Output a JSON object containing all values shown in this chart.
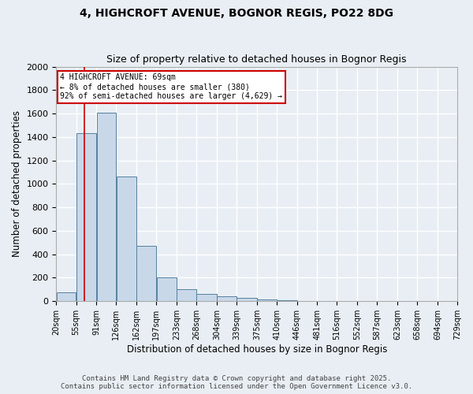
{
  "title_line1": "4, HIGHCROFT AVENUE, BOGNOR REGIS, PO22 8DG",
  "title_line2": "Size of property relative to detached houses in Bognor Regis",
  "xlabel": "Distribution of detached houses by size in Bognor Regis",
  "ylabel": "Number of detached properties",
  "bar_color": "#c8d8e8",
  "bar_edge_color": "#5580a0",
  "background_color": "#e8eef4",
  "grid_color": "#ffffff",
  "bin_edges": [
    20,
    55,
    91,
    126,
    162,
    197,
    233,
    268,
    304,
    339,
    375,
    410,
    446,
    481,
    516,
    552,
    587,
    623,
    658,
    694,
    729
  ],
  "bin_labels": [
    "20sqm",
    "55sqm",
    "91sqm",
    "126sqm",
    "162sqm",
    "197sqm",
    "233sqm",
    "268sqm",
    "304sqm",
    "339sqm",
    "375sqm",
    "410sqm",
    "446sqm",
    "481sqm",
    "516sqm",
    "552sqm",
    "587sqm",
    "623sqm",
    "658sqm",
    "694sqm",
    "729sqm"
  ],
  "bar_heights": [
    75,
    1430,
    1610,
    1060,
    470,
    200,
    100,
    60,
    40,
    30,
    15,
    8,
    4,
    2,
    1,
    1,
    0,
    0,
    0,
    0
  ],
  "property_value": 69,
  "property_label": "4 HIGHCROFT AVENUE: 69sqm",
  "annotation_line2": "← 8% of detached houses are smaller (380)",
  "annotation_line3": "92% of semi-detached houses are larger (4,629) →",
  "vline_color": "#cc0000",
  "annotation_box_color": "#ffffff",
  "annotation_box_edge": "#cc0000",
  "ylim": [
    0,
    2000
  ],
  "yticks": [
    0,
    200,
    400,
    600,
    800,
    1000,
    1200,
    1400,
    1600,
    1800,
    2000
  ],
  "footer_line1": "Contains HM Land Registry data © Crown copyright and database right 2025.",
  "footer_line2": "Contains public sector information licensed under the Open Government Licence v3.0."
}
